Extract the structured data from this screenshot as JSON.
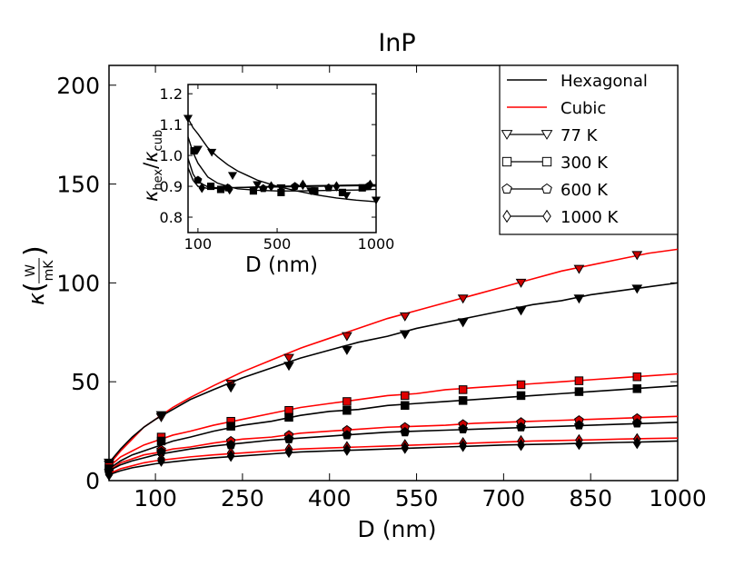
{
  "chart_data": [
    {
      "type": "line",
      "title": "InP",
      "xlabel": "D (nm)",
      "ylabel": "κ(W/mK)",
      "ylabel_parts": {
        "symbol": "κ",
        "numerator": "W",
        "denominator": "mK"
      },
      "xlim": [
        20,
        1000
      ],
      "ylim": [
        0,
        210
      ],
      "xticks": [
        100,
        250,
        400,
        550,
        700,
        850,
        1000
      ],
      "yticks": [
        0,
        50,
        100,
        150,
        200
      ],
      "legend": {
        "placement": "top-right",
        "entries": [
          {
            "label": "Hexagonal",
            "style": "line",
            "color": "#000000"
          },
          {
            "label": "Cubic",
            "style": "line",
            "color": "#ff0000"
          },
          {
            "label": "77 K",
            "style": "triangle-down"
          },
          {
            "label": "300 K",
            "style": "square"
          },
          {
            "label": "600 K",
            "style": "pentagon"
          },
          {
            "label": "1000 K",
            "style": "diamond"
          }
        ]
      },
      "marker_x": [
        20,
        110,
        230,
        330,
        430,
        530,
        630,
        730,
        830,
        930
      ],
      "curve_x": [
        20,
        40,
        60,
        80,
        100,
        130,
        160,
        200,
        250,
        300,
        350,
        400,
        450,
        500,
        550,
        600,
        650,
        700,
        750,
        800,
        850,
        900,
        950,
        1000
      ],
      "series": [
        {
          "group": "Cubic",
          "temperature": "77 K",
          "marker": "triangle-down",
          "color": "#ff0000",
          "line_color": "#ff0000",
          "marker_fill": "#cc0000",
          "curve": [
            8,
            15,
            21,
            27,
            31,
            37,
            42,
            48,
            55,
            61,
            67,
            72,
            77,
            82,
            86,
            90,
            94,
            98,
            102,
            106,
            109,
            112,
            115,
            117
          ],
          "markers": [
            8,
            32,
            49,
            62,
            73,
            83,
            92,
            100,
            107,
            114
          ]
        },
        {
          "group": "Hexagonal",
          "temperature": "77 K",
          "marker": "triangle-down",
          "color": "#000000",
          "line_color": "#000000",
          "marker_fill": "#000000",
          "curve": [
            9,
            16,
            22,
            27,
            31,
            36,
            41,
            46,
            52,
            57,
            62,
            66,
            70,
            73,
            77,
            80,
            83,
            86,
            89,
            91,
            94,
            96,
            98,
            100
          ],
          "markers": [
            9,
            33,
            47,
            58,
            66,
            74,
            80,
            86,
            92,
            97
          ]
        },
        {
          "group": "Cubic",
          "temperature": "300 K",
          "marker": "square",
          "color": "#ff0000",
          "line_color": "#ff0000",
          "marker_fill": "#e00000",
          "curve": [
            7,
            12,
            15,
            18,
            20,
            23,
            25,
            28,
            31,
            34,
            37,
            39,
            41,
            43,
            44,
            46,
            47,
            48,
            49,
            50,
            51,
            52,
            53,
            54
          ],
          "markers": [
            7,
            22,
            30,
            35.5,
            40,
            43,
            46,
            48.5,
            50.5,
            52.5
          ]
        },
        {
          "group": "Hexagonal",
          "temperature": "300 K",
          "marker": "square",
          "color": "#000000",
          "line_color": "#000000",
          "marker_fill": "#000000",
          "curve": [
            6,
            10,
            13,
            15,
            17,
            20,
            22,
            25,
            28,
            30,
            33,
            35,
            36,
            38,
            39,
            40,
            41,
            42,
            43,
            44,
            45,
            46,
            47,
            48
          ],
          "markers": [
            6,
            20,
            27.5,
            32,
            35.5,
            38,
            40.5,
            43,
            45,
            46.5
          ]
        },
        {
          "group": "Cubic",
          "temperature": "600 K",
          "marker": "pentagon",
          "color": "#ff0000",
          "line_color": "#ff0000",
          "marker_fill": "#cc0000",
          "curve": [
            5,
            9,
            11,
            13,
            14,
            16,
            17,
            19,
            21,
            22,
            24,
            25,
            26,
            27,
            27.5,
            28,
            29,
            29.5,
            30,
            30.5,
            31,
            31.5,
            32,
            32.5
          ],
          "markers": [
            5,
            15.5,
            20,
            23,
            25.5,
            27,
            28.5,
            29.5,
            30.5,
            31.5
          ]
        },
        {
          "group": "Hexagonal",
          "temperature": "600 K",
          "marker": "pentagon",
          "color": "#000000",
          "line_color": "#000000",
          "marker_fill": "#000000",
          "curve": [
            5,
            8,
            10,
            11.5,
            13,
            14.5,
            16,
            17.5,
            19,
            20.5,
            21.5,
            22.5,
            23.5,
            24.5,
            25,
            25.5,
            26,
            26.5,
            27,
            27.5,
            28,
            28.5,
            29,
            29.5
          ],
          "markers": [
            5,
            14.5,
            18,
            21,
            23,
            24.5,
            26,
            27,
            28,
            29
          ]
        },
        {
          "group": "Cubic",
          "temperature": "1000 K",
          "marker": "diamond",
          "color": "#ff0000",
          "line_color": "#ff0000",
          "marker_fill": "#cc0000",
          "curve": [
            3.5,
            6,
            7.5,
            9,
            10,
            11,
            12,
            13,
            14,
            15,
            16,
            16.5,
            17,
            17.5,
            18,
            18.5,
            19,
            19.5,
            20,
            20.3,
            20.6,
            21,
            21.3,
            21.5
          ],
          "markers": [
            3.5,
            11,
            14,
            16,
            17,
            18,
            19,
            20,
            20.5,
            21
          ]
        },
        {
          "group": "Hexagonal",
          "temperature": "1000 K",
          "marker": "diamond",
          "color": "#000000",
          "line_color": "#000000",
          "marker_fill": "#000000",
          "curve": [
            3,
            5,
            6.5,
            7.5,
            8.5,
            9.5,
            10.5,
            11.5,
            12.5,
            13.5,
            14.5,
            15,
            15.5,
            16,
            16.5,
            17,
            17.5,
            18,
            18.3,
            18.6,
            19,
            19.3,
            19.6,
            20
          ],
          "markers": [
            3,
            10,
            12.5,
            14.5,
            15.5,
            16.5,
            17.5,
            18,
            18.5,
            19
          ]
        }
      ]
    },
    {
      "type": "line",
      "title": "",
      "xlabel": "D (nm)",
      "ylabel": "κhex/κcub",
      "ylabel_parts": {
        "symbol": "κ",
        "sub1": "hex",
        "sub2": "cub"
      },
      "xlim": [
        50,
        1000
      ],
      "ylim": [
        0.75,
        1.23
      ],
      "xticks": [
        100,
        500,
        1000
      ],
      "yticks": [
        0.8,
        0.9,
        1.0,
        1.1,
        1.2
      ],
      "ytick_labels": [
        "0.8",
        "0.9",
        "1.0",
        "1.1",
        "1.2"
      ],
      "series": [
        {
          "temperature": "77 K",
          "marker": "triangle-down",
          "color": "#000000",
          "curve_x": [
            50,
            75,
            100,
            150,
            200,
            250,
            300,
            350,
            400,
            450,
            500,
            600,
            700,
            800,
            900,
            1000
          ],
          "curve": [
            1.12,
            1.09,
            1.07,
            1.025,
            0.995,
            0.97,
            0.95,
            0.935,
            0.92,
            0.91,
            0.9,
            0.885,
            0.872,
            0.862,
            0.855,
            0.85
          ],
          "marker_x": [
            50,
            100,
            170,
            275,
            400,
            520,
            670,
            850,
            1000
          ],
          "markers": [
            1.12,
            1.02,
            1.01,
            0.935,
            0.905,
            0.895,
            0.885,
            0.87,
            0.855
          ]
        },
        {
          "temperature": "300 K",
          "marker": "square",
          "color": "#000000",
          "curve_x": [
            50,
            75,
            100,
            150,
            200,
            250,
            300,
            400,
            500,
            600,
            700,
            800,
            900,
            1000
          ],
          "curve": [
            1.06,
            1.01,
            0.975,
            0.93,
            0.91,
            0.9,
            0.892,
            0.887,
            0.885,
            0.885,
            0.886,
            0.887,
            0.888,
            0.89
          ],
          "marker_x": [
            80,
            165,
            215,
            380,
            520,
            690,
            830,
            930
          ],
          "markers": [
            1.015,
            0.9,
            0.89,
            0.885,
            0.88,
            0.885,
            0.88,
            0.895
          ]
        },
        {
          "temperature": "600 K",
          "marker": "pentagon",
          "color": "#000000",
          "curve_x": [
            50,
            75,
            100,
            150,
            200,
            250,
            300,
            400,
            500,
            600,
            700,
            800,
            900,
            1000
          ],
          "curve": [
            0.99,
            0.94,
            0.915,
            0.898,
            0.895,
            0.895,
            0.896,
            0.897,
            0.898,
            0.899,
            0.9,
            0.901,
            0.902,
            0.903
          ],
          "marker_x": [
            100,
            250,
            430,
            590,
            760,
            960
          ],
          "markers": [
            0.92,
            0.895,
            0.893,
            0.9,
            0.895,
            0.9
          ]
        },
        {
          "temperature": "1000 K",
          "marker": "diamond",
          "color": "#000000",
          "curve_x": [
            50,
            75,
            100,
            150,
            200,
            250,
            300,
            400,
            500,
            600,
            700,
            800,
            900,
            1000
          ],
          "curve": [
            0.96,
            0.92,
            0.9,
            0.893,
            0.893,
            0.895,
            0.896,
            0.898,
            0.9,
            0.901,
            0.902,
            0.903,
            0.904,
            0.905
          ],
          "marker_x": [
            120,
            260,
            470,
            630,
            800,
            970
          ],
          "markers": [
            0.895,
            0.89,
            0.9,
            0.905,
            0.9,
            0.905
          ]
        }
      ]
    }
  ]
}
